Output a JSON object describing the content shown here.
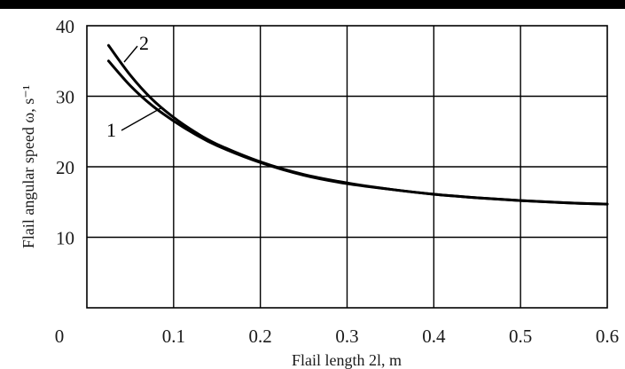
{
  "chart_data": {
    "type": "line",
    "xlabel": "Flail length 2l, m",
    "ylabel": "Flail angular speed ω, s⁻¹",
    "xlim": [
      0,
      0.6
    ],
    "ylim": [
      0,
      40
    ],
    "x_ticks": [
      "0",
      "0.1",
      "0.2",
      "0.3",
      "0.4",
      "0.5",
      "0.6"
    ],
    "y_ticks": [
      "10",
      "20",
      "30",
      "40"
    ],
    "grid": true,
    "series": [
      {
        "name": "1",
        "x": [
          0.025,
          0.05,
          0.075,
          0.1,
          0.125,
          0.15,
          0.2,
          0.25,
          0.3,
          0.35,
          0.4,
          0.45,
          0.5,
          0.55,
          0.6
        ],
        "values": [
          35,
          31.5,
          28.7,
          26.5,
          24.6,
          23.0,
          20.6,
          18.8,
          17.6,
          16.8,
          16.1,
          15.6,
          15.2,
          14.9,
          14.7
        ]
      },
      {
        "name": "2",
        "x": [
          0.025,
          0.05,
          0.075,
          0.1,
          0.125,
          0.15,
          0.2,
          0.25,
          0.3,
          0.35,
          0.4,
          0.45,
          0.5,
          0.55,
          0.6
        ],
        "values": [
          37.2,
          33.0,
          29.6,
          27.0,
          24.9,
          23.2,
          20.7,
          18.9,
          17.7,
          16.8,
          16.1,
          15.6,
          15.2,
          14.9,
          14.7
        ]
      }
    ]
  }
}
